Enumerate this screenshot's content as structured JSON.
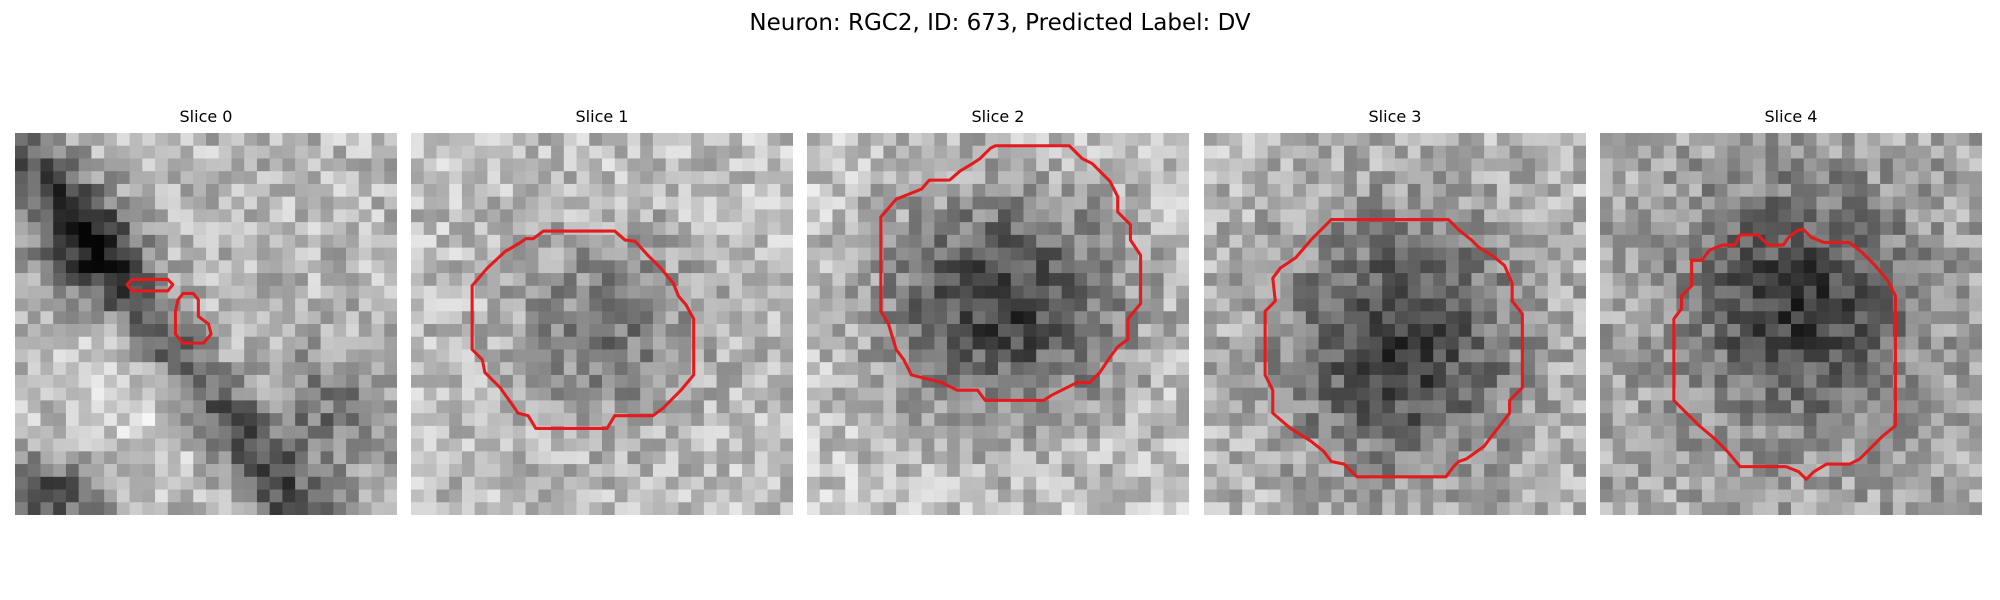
{
  "figure": {
    "title": "Neuron: RGC2, ID: 673, Predicted Label: DV"
  },
  "panels": [
    {
      "title": "Slice 0"
    },
    {
      "title": "Slice 1"
    },
    {
      "title": "Slice 2"
    },
    {
      "title": "Slice 3"
    },
    {
      "title": "Slice 4"
    }
  ],
  "colors": {
    "contour": "#e41a1c",
    "colormap": "gray",
    "background": "#ffffff"
  },
  "grid": {
    "rows": 30,
    "cols": 30
  }
}
